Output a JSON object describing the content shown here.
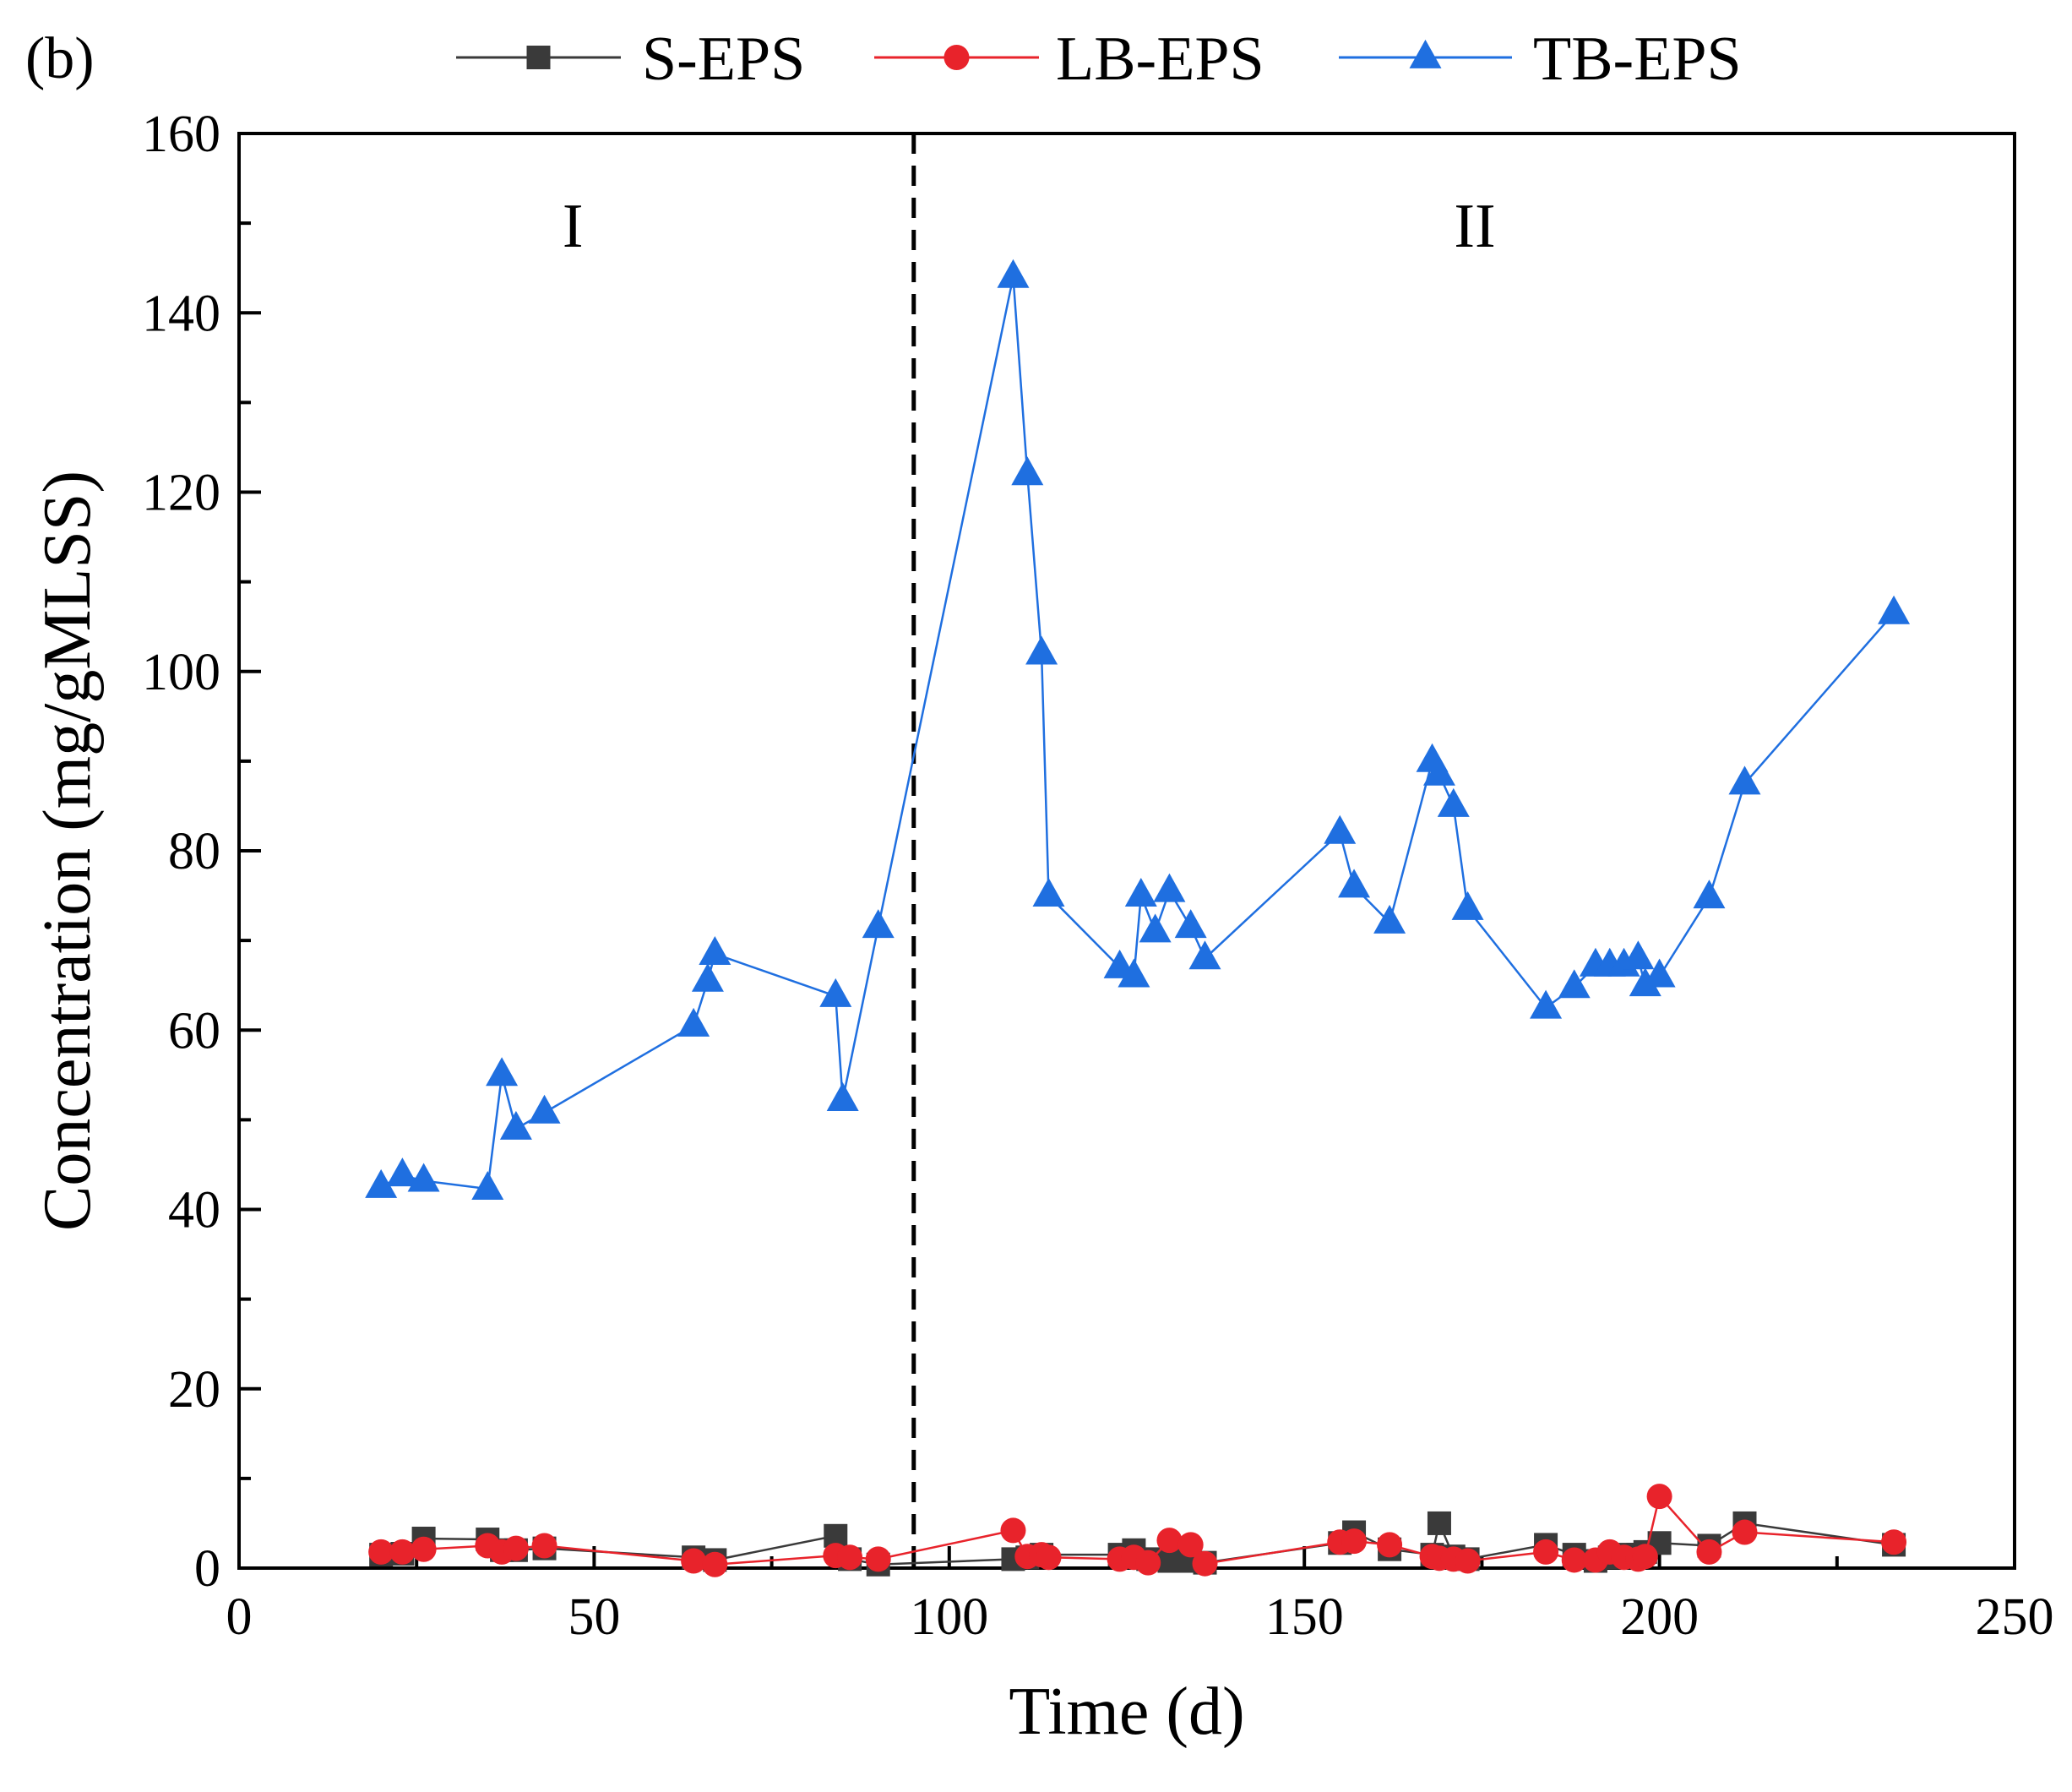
{
  "chart_data": {
    "type": "line",
    "panel_label": "(b)",
    "xlabel": "Time (d)",
    "ylabel": "Concentration (mg/gMLSS)",
    "xlim": [
      0,
      250
    ],
    "ylim": [
      0,
      160
    ],
    "xticks": [
      0,
      50,
      100,
      150,
      200,
      250
    ],
    "yticks": [
      0,
      20,
      40,
      60,
      80,
      100,
      120,
      140,
      160
    ],
    "grid": false,
    "legend_position": "top, outside plot area",
    "phase_divider_x": 95,
    "regions": [
      {
        "label": "I",
        "x": 47,
        "y": 150
      },
      {
        "label": "II",
        "x": 174,
        "y": 150
      }
    ],
    "series": [
      {
        "name": "S-EPS",
        "color": "#3a3a3a",
        "marker": "square",
        "x": [
          20,
          23,
          26,
          35,
          37,
          39,
          43,
          64,
          67,
          84,
          86,
          90,
          109,
          111,
          113,
          124,
          126,
          128,
          131,
          133,
          136,
          155,
          157,
          162,
          168,
          169,
          171,
          173,
          184,
          188,
          191,
          193,
          195,
          197,
          198,
          200,
          207,
          212,
          233
        ],
        "y": [
          1.5,
          1.6,
          3.3,
          3.2,
          2.0,
          2.0,
          2.2,
          1.2,
          0.9,
          3.6,
          1.0,
          0.4,
          1.0,
          1.2,
          1.5,
          1.5,
          2.0,
          1.0,
          0.8,
          0.8,
          0.6,
          2.8,
          4.0,
          2.1,
          1.5,
          5.0,
          1.3,
          1.0,
          2.6,
          1.5,
          0.8,
          1.2,
          1.5,
          1.5,
          1.8,
          2.8,
          2.5,
          5.0,
          2.6
        ]
      },
      {
        "name": "LB-EPS",
        "color": "#e8232b",
        "marker": "circle",
        "x": [
          20,
          23,
          26,
          35,
          37,
          39,
          43,
          64,
          67,
          84,
          86,
          90,
          109,
          111,
          113,
          114,
          124,
          126,
          128,
          131,
          134,
          136,
          155,
          157,
          162,
          168,
          169,
          171,
          173,
          184,
          188,
          191,
          193,
          195,
          197,
          198,
          200,
          207,
          212,
          233
        ],
        "y": [
          1.8,
          1.8,
          2.1,
          2.5,
          1.8,
          2.2,
          2.5,
          0.8,
          0.4,
          1.4,
          1.2,
          1.0,
          4.2,
          1.3,
          1.5,
          1.2,
          1.0,
          1.2,
          0.6,
          3.1,
          2.6,
          0.5,
          2.9,
          3.0,
          2.6,
          1.3,
          1.1,
          1.0,
          0.8,
          1.8,
          0.9,
          0.9,
          1.8,
          1.2,
          1.0,
          1.3,
          8.0,
          1.8,
          4.0,
          2.9
        ]
      },
      {
        "name": "TB-EPS",
        "color": "#1f6fe0",
        "marker": "triangle",
        "x": [
          20,
          23,
          26,
          35,
          37,
          39,
          43,
          64,
          66,
          67,
          84,
          85,
          90,
          109,
          111,
          113,
          114,
          124,
          126,
          127,
          129,
          131,
          134,
          136,
          155,
          157,
          162,
          168,
          169,
          171,
          173,
          184,
          188,
          191,
          193,
          195,
          197,
          198,
          200,
          207,
          212,
          233
        ],
        "y": [
          42.5,
          43.8,
          43.2,
          42.3,
          55.0,
          49.0,
          50.8,
          60.5,
          65.5,
          68.5,
          63.8,
          52.2,
          71.5,
          144.0,
          122.0,
          102.0,
          75.0,
          67.0,
          66.0,
          75.0,
          71.0,
          75.5,
          71.5,
          68.0,
          82.0,
          76.0,
          72.0,
          90.0,
          88.5,
          85.0,
          73.5,
          62.5,
          64.8,
          67.2,
          67.2,
          67.2,
          68.0,
          65.0,
          66.0,
          74.8,
          87.5,
          106.5
        ]
      }
    ]
  }
}
